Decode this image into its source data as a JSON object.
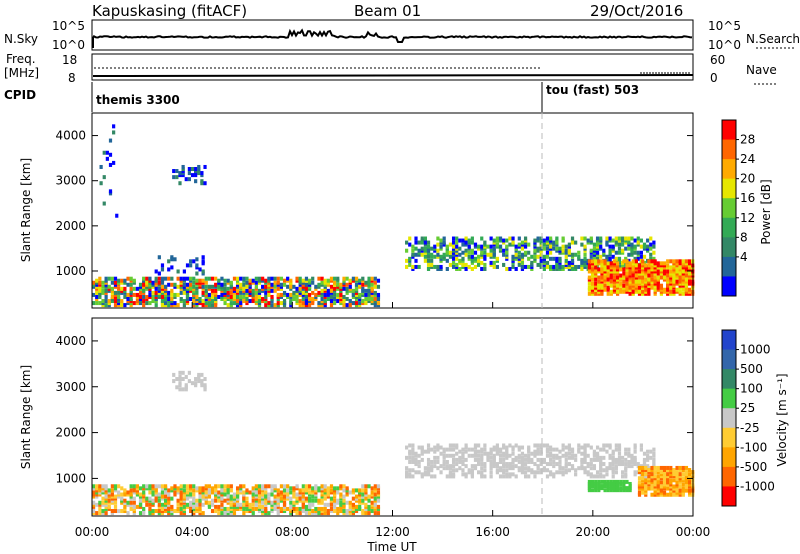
{
  "header": {
    "station": "Kapuskasing (fitACF)",
    "beam": "Beam 01",
    "date": "29/Oct/2016"
  },
  "strips": {
    "nsky": {
      "label": "N.Sky",
      "ticks": [
        "10^5",
        "10^0"
      ]
    },
    "nsearch": {
      "label": "N.Search",
      "ticks": [
        "10^5",
        "10^0"
      ]
    },
    "freq": {
      "label_line1": "Freq.",
      "label_line2": "[MHz]",
      "ticks": [
        "18",
        "8"
      ]
    },
    "nave": {
      "label": "Nave",
      "ticks": [
        "60",
        "0"
      ]
    },
    "cpid": {
      "label": "CPID",
      "modes": [
        "themis 3300",
        "tou (fast) 503"
      ]
    }
  },
  "chart_data": [
    {
      "type": "heatmap",
      "name": "power",
      "ylabel": "Slant Range [km]",
      "yticks": [
        "4000",
        "3000",
        "2000",
        "1000"
      ],
      "ylim": [
        180,
        4500
      ],
      "xlim_hours": [
        0,
        24
      ],
      "colorbar": {
        "label": "Power [dB]",
        "tick_labels": [
          "28",
          "24",
          "20",
          "16",
          "12",
          "8",
          "4"
        ],
        "colors": [
          "#ff0000",
          "#ff6600",
          "#ffaa00",
          "#e6e600",
          "#66cc33",
          "#33aa55",
          "#338866",
          "#226699",
          "#0000ff"
        ]
      },
      "regions": [
        {
          "t": [
            0.0,
            11.5
          ],
          "r": [
            200,
            800
          ],
          "density": 0.6,
          "levels": [
            0,
            1,
            2,
            3,
            4,
            5,
            6,
            7,
            8
          ]
        },
        {
          "t": [
            0.3,
            1.0
          ],
          "r": [
            2000,
            4300
          ],
          "density": 0.05,
          "levels": [
            6,
            7,
            8
          ]
        },
        {
          "t": [
            3.2,
            4.5
          ],
          "r": [
            2900,
            3300
          ],
          "density": 0.35,
          "levels": [
            6,
            7,
            8
          ]
        },
        {
          "t": [
            2.5,
            4.5
          ],
          "r": [
            900,
            1300
          ],
          "density": 0.2,
          "levels": [
            6,
            7,
            8
          ]
        },
        {
          "t": [
            12.5,
            22.5
          ],
          "r": [
            1000,
            1700
          ],
          "density": 0.45,
          "levels": [
            3,
            4,
            5,
            6,
            7,
            8
          ]
        },
        {
          "t": [
            19.8,
            24.0
          ],
          "r": [
            450,
            1200
          ],
          "density": 0.75,
          "levels": [
            0,
            1,
            2,
            3
          ]
        }
      ]
    },
    {
      "type": "heatmap",
      "name": "velocity",
      "ylabel": "Slant Range [km]",
      "yticks": [
        "4000",
        "3000",
        "2000",
        "1000"
      ],
      "ylim": [
        180,
        4500
      ],
      "xlim_hours": [
        0,
        24
      ],
      "xticks": [
        "00:00",
        "04:00",
        "08:00",
        "12:00",
        "16:00",
        "20:00",
        "00:00"
      ],
      "xlabel": "Time UT",
      "colorbar": {
        "label": "Velocity [m s⁻¹]",
        "tick_labels": [
          "1000",
          "500",
          "100",
          "25",
          "-25",
          "-100",
          "-500",
          "-1000"
        ],
        "colors": [
          "#2244cc",
          "#3366aa",
          "#338866",
          "#44cc44",
          "#c8c8c8",
          "#ffcc33",
          "#ffa500",
          "#ff6600",
          "#ff0000"
        ]
      },
      "regions": [
        {
          "t": [
            0.0,
            11.5
          ],
          "r": [
            200,
            800
          ],
          "density": 0.6,
          "levels": [
            3,
            4,
            5,
            6,
            7
          ]
        },
        {
          "t": [
            3.2,
            4.5
          ],
          "r": [
            2900,
            3300
          ],
          "density": 0.35,
          "levels": [
            4
          ]
        },
        {
          "t": [
            12.5,
            22.5
          ],
          "r": [
            1000,
            1700
          ],
          "density": 0.45,
          "levels": [
            4
          ]
        },
        {
          "t": [
            19.8,
            21.5
          ],
          "r": [
            700,
            900
          ],
          "density": 0.8,
          "levels": [
            3
          ]
        },
        {
          "t": [
            21.8,
            24.0
          ],
          "r": [
            600,
            1200
          ],
          "density": 0.75,
          "levels": [
            5,
            6,
            7
          ]
        }
      ]
    }
  ]
}
